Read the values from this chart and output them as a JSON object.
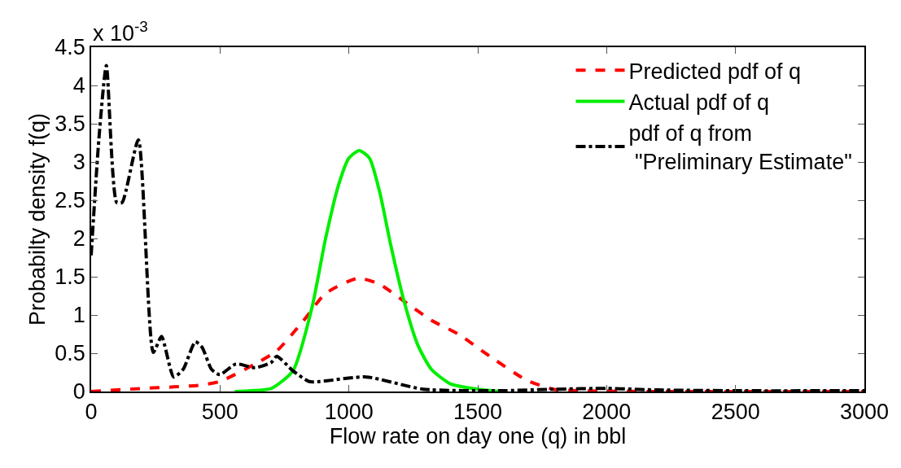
{
  "chart_data": {
    "type": "line",
    "xlabel": "Flow rate on day one (q) in bbl",
    "ylabel": "Probabilty density f(q)",
    "annotations": [
      "x 10$^{-3}$"
    ],
    "xlim": [
      0,
      3000
    ],
    "xticks": [
      0,
      500,
      1000,
      1500,
      2000,
      2500,
      3000
    ],
    "ylim": [
      0,
      4.5
    ],
    "yticks": [
      0,
      0.5,
      1,
      1.5,
      2,
      2.5,
      3,
      3.5,
      4,
      4.5
    ],
    "legend": "top right",
    "marker": "none",
    "series": [
      {
        "name": "Predicted pdf of q",
        "color": "#ff0000",
        "line_style": "dashed",
        "x": [
          0,
          200,
          320,
          415,
          499,
          636,
          720,
          825,
          909,
          1035,
          1120,
          1214,
          1320,
          1425,
          1530,
          1688,
          1793,
          1900,
          2200,
          3000
        ],
        "values": [
          0,
          0.04,
          0.06,
          0.08,
          0.13,
          0.36,
          0.53,
          0.93,
          1.28,
          1.48,
          1.4,
          1.18,
          0.93,
          0.75,
          0.5,
          0.15,
          0.03,
          0.01,
          0,
          0
        ]
      },
      {
        "name": "Actual pdf of q",
        "color": "#00ee00",
        "line_style": "solid",
        "x": [
          557,
          620,
          699,
          783,
          857,
          909,
          960,
          1000,
          1040,
          1080,
          1120,
          1162,
          1214,
          1267,
          1320,
          1394,
          1478,
          1583
        ],
        "values": [
          0,
          0.01,
          0.04,
          0.27,
          1.1,
          1.99,
          2.7,
          3.05,
          3.15,
          3.05,
          2.6,
          1.92,
          1.18,
          0.61,
          0.29,
          0.1,
          0.04,
          0
        ]
      },
      {
        "name": "pdf of q from\n \"Preliminary Estimate\"",
        "color": "#000000",
        "line_style": "dashdot",
        "x": [
          0,
          30,
          59,
          99,
          120,
          183,
          241,
          273,
          320,
          357,
          404,
          430,
          467,
          499,
          562,
          636,
          699,
          720,
          783,
          846,
          888,
          1067,
          1288,
          1583,
          1800,
          2000,
          2200,
          2500,
          3000
        ],
        "values": [
          1.78,
          3.3,
          4.26,
          2.47,
          2.47,
          3.29,
          0.51,
          0.72,
          0.19,
          0.29,
          0.65,
          0.58,
          0.29,
          0.22,
          0.36,
          0.31,
          0.38,
          0.46,
          0.27,
          0.13,
          0.13,
          0.19,
          0.03,
          0.01,
          0.03,
          0.04,
          0.02,
          0.01,
          0.01
        ]
      }
    ]
  }
}
